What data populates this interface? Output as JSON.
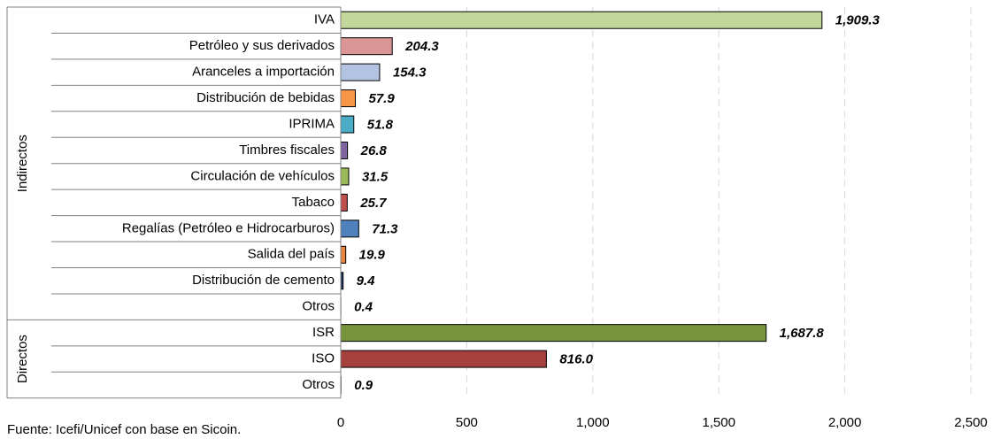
{
  "chart_data": {
    "type": "bar",
    "orientation": "horizontal",
    "groups": [
      {
        "name": "Indirectos",
        "categories": [
          "IVA",
          "Petróleo y sus derivados",
          "Aranceles a importación",
          "Distribución de bebidas",
          "IPRIMA",
          "Timbres fiscales",
          "Circulación de vehículos",
          "Tabaco",
          "Regalías (Petróleo e Hidrocarburos)",
          "Salida del país",
          "Distribución de cemento",
          "Otros"
        ],
        "values": [
          1909.3,
          204.3,
          154.3,
          57.9,
          51.8,
          26.8,
          31.5,
          25.7,
          71.3,
          19.9,
          9.4,
          0.4
        ],
        "value_labels": [
          "1,909.3",
          "204.3",
          "154.3",
          "57.9",
          "51.8",
          "26.8",
          "31.5",
          "25.7",
          "71.3",
          "19.9",
          "9.4",
          "0.4"
        ],
        "colors": [
          "#c4d79b",
          "#d99694",
          "#b3c3e2",
          "#f79646",
          "#4bacc6",
          "#8064a2",
          "#9bbb59",
          "#c0504d",
          "#4f81bd",
          "#e9843f",
          "#1f3864",
          "#7f7f7f"
        ]
      },
      {
        "name": "Directos",
        "categories": [
          "ISR",
          "ISO",
          "Otros"
        ],
        "values": [
          1687.8,
          816.0,
          0.9
        ],
        "value_labels": [
          "1,687.8",
          "816.0",
          "0.9"
        ],
        "colors": [
          "#77933c",
          "#a5403d",
          "#7f7f7f"
        ]
      }
    ],
    "xlim": [
      0,
      2500
    ],
    "xticks": [
      0,
      500,
      {
        "value": 1000,
        "label": "1,000"
      },
      {
        "value": 1500,
        "label": "1,500"
      },
      {
        "value": 2000,
        "label": "2,000"
      },
      {
        "value": 2500,
        "label": "2,500"
      }
    ],
    "grid": true,
    "source": "Fuente: Icefi/Unicef con base en Sicoin."
  }
}
